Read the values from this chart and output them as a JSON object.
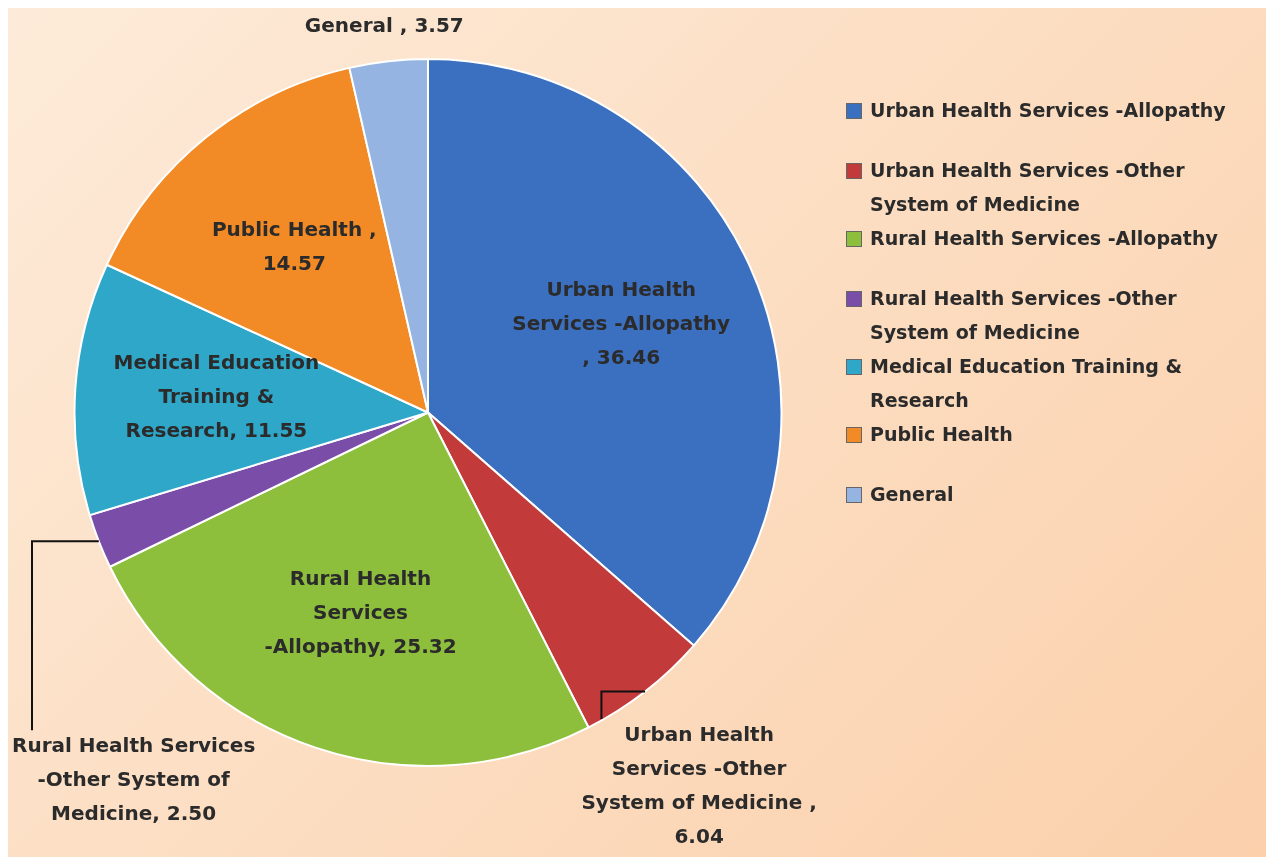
{
  "chart_data": {
    "type": "pie",
    "categories": [
      "Urban Health Services -Allopathy",
      "Urban Health Services -Other System of Medicine",
      "Rural Health Services -Allopathy",
      "Rural Health Services  -Other System of Medicine",
      "Medical Education Training & Research",
      "Public Health",
      "General"
    ],
    "values": [
      36.46,
      6.04,
      25.32,
      2.5,
      11.55,
      14.57,
      3.57
    ],
    "colors": [
      "#3b6fc0",
      "#c23a3a",
      "#8dbf3c",
      "#7a4ea8",
      "#2fa7c9",
      "#f28b26",
      "#95b4e2"
    ],
    "value_labels": [
      "Urban Health Services -Allopathy , 36.46",
      "Urban Health Services -Other System of Medicine , 6.04",
      "Rural Health Services -Allopathy, 25.32",
      "Rural Health Services  -Other System of Medicine, 2.50",
      "Medical Education Training & Research, 11.55",
      "Public Health , 14.57",
      "General , 3.57"
    ],
    "legend": "right"
  }
}
